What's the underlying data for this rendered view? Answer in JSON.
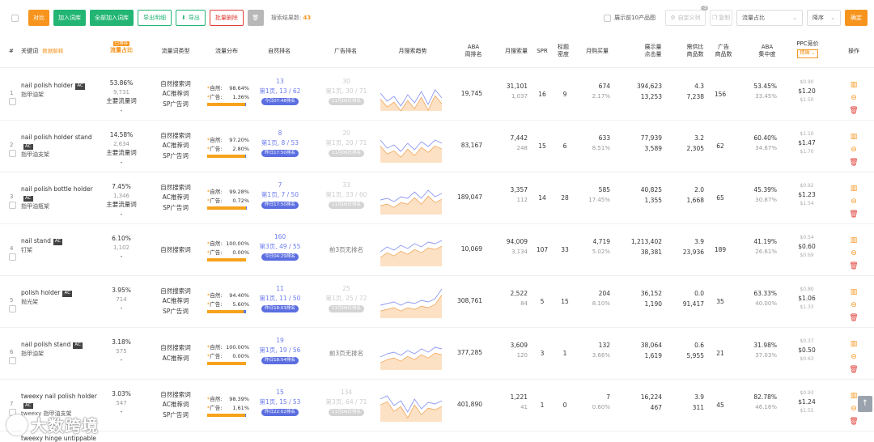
{
  "toolbar": {
    "buttons": [
      "对比",
      "加入词库",
      "全部加入词库",
      "导出明细",
      "导出",
      "批量删除"
    ],
    "result_label": "搜索结果数:",
    "result_count": "43",
    "top10_label": "展示前10产品图",
    "custom_cols": "自定义列",
    "custom_cols_badge": "-3",
    "copy_label": "复制",
    "sort_field": "流量占比",
    "sort_order": "降序",
    "confirm": "确定"
  },
  "header": {
    "num": "#",
    "keyword": "关键词",
    "keyword_sub": "数据解释",
    "flow_badge": "已排序",
    "flow": "流量占比",
    "flow_type": "流量词类型",
    "flow_dist": "流量分布",
    "natural_rank": "自然排名",
    "ad_rank": "广告排名",
    "trend": "月搜索趋势",
    "aba_rank_1": "ABA",
    "aba_rank_2": "周排名",
    "monthly_search": "月搜索量",
    "spr": "SPR",
    "title_density_1": "标题",
    "title_density_2": "密度",
    "monthly_buy": "月购买量",
    "impress_1": "展示量",
    "impress_2": "点击量",
    "supply_1": "需供比",
    "supply_2": "商品数",
    "ad_products_1": "广告",
    "ad_products_2": "商品数",
    "aba_conc_1": "ABA",
    "aba_conc_2": "集中度",
    "ppc": "PPC竞价",
    "ppc_select": "精确",
    "ops": "操作"
  },
  "rows": [
    {
      "idx": "1",
      "kw": "nail polish holder",
      "cn": "指甲油架",
      "flow": "53.86%",
      "cnt": "9,731",
      "main": "主要流量词",
      "dash": "-",
      "types": [
        "自然搜索词",
        "AC推荐词",
        "SP广告词"
      ],
      "nat_pct": "98.64%",
      "ad_pct": "1.36%",
      "rank": "13",
      "rank_page": "第1页, 13 / 62",
      "rank_time": "今日07:48排名",
      "ad_rank": "30",
      "ad_page": "第1页, 30 / 71",
      "ad_time": "11月06日排名",
      "aba": "19,745",
      "ms": "31,101",
      "ms2": "1,037",
      "spr": "16",
      "td": "9",
      "buy": "674",
      "buy_pct": "2.17%",
      "imp": "394,623",
      "clk": "13,253",
      "sup": "4.3",
      "prods": "7,238",
      "adprods": "156",
      "conc": "53.45%",
      "conc2": "33.45%",
      "ppc_low": "$0.90",
      "ppc": "$1.20",
      "ppc_high": "$1.50"
    },
    {
      "idx": "2",
      "kw": "nail polish holder stand",
      "cn": "指甲油支架",
      "flow": "14.58%",
      "cnt": "2,634",
      "main": "主要流量词",
      "dash": "-",
      "types": [
        "自然搜索词",
        "AC推荐词",
        "SP广告词"
      ],
      "nat_pct": "97.20%",
      "ad_pct": "2.80%",
      "rank": "8",
      "rank_page": "第1页, 8 / 53",
      "rank_time": "昨日17:50排名",
      "ad_rank": "20",
      "ad_page": "第1页, 20 / 71",
      "ad_time": "11月06日排名",
      "aba": "83,167",
      "ms": "7,442",
      "ms2": "248",
      "spr": "15",
      "td": "6",
      "buy": "633",
      "buy_pct": "8.51%",
      "imp": "77,939",
      "clk": "3,589",
      "sup": "3.2",
      "prods": "2,305",
      "adprods": "62",
      "conc": "60.40%",
      "conc2": "34.67%",
      "ppc_low": "$1.10",
      "ppc": "$1.47",
      "ppc_high": "$1.70"
    },
    {
      "idx": "3",
      "kw": "nail polish bottle holder",
      "cn": "指甲油瓶架",
      "flow": "7.45%",
      "cnt": "1,346",
      "main": "主要流量词",
      "dash": "-",
      "types": [
        "自然搜索词",
        "AC推荐词",
        "SP广告词"
      ],
      "nat_pct": "99.28%",
      "ad_pct": "0.72%",
      "rank": "7",
      "rank_page": "第1页, 7 / 50",
      "rank_time": "昨日17:50排名",
      "ad_rank": "33",
      "ad_page": "第1页, 33 / 60",
      "ad_time": "11月06日排名",
      "aba": "189,047",
      "ms": "3,357",
      "ms2": "112",
      "spr": "14",
      "td": "28",
      "buy": "585",
      "buy_pct": "17.45%",
      "imp": "40,825",
      "clk": "1,355",
      "sup": "2.0",
      "prods": "1,668",
      "adprods": "65",
      "conc": "45.39%",
      "conc2": "30.87%",
      "ppc_low": "$0.92",
      "ppc": "$1.23",
      "ppc_high": "$1.54"
    },
    {
      "idx": "4",
      "kw": "nail stand",
      "cn": "钉架",
      "flow": "6.10%",
      "cnt": "1,102",
      "main": "",
      "dash": "-",
      "types": [
        "自然搜索词"
      ],
      "nat_pct": "100.00%",
      "ad_pct": "0.00%",
      "rank": "160",
      "rank_page": "第3页, 49 / 55",
      "rank_time": "今日04:29排名",
      "ad_none": "前3页无排名",
      "aba": "10,069",
      "ms": "94,009",
      "ms2": "3,134",
      "spr": "107",
      "td": "33",
      "buy": "4,719",
      "buy_pct": "5.02%",
      "imp": "1,213,402",
      "clk": "38,381",
      "sup": "3.9",
      "prods": "23,936",
      "adprods": "189",
      "conc": "41.19%",
      "conc2": "26.61%",
      "ppc_low": "$0.54",
      "ppc": "$0.60",
      "ppc_high": "$0.69"
    },
    {
      "idx": "5",
      "kw": "polish holder",
      "cn": "抛光架",
      "flow": "3.95%",
      "cnt": "714",
      "main": "",
      "dash": "-",
      "types": [
        "自然搜索词",
        "AC推荐词",
        "SP广告词"
      ],
      "nat_pct": "94.40%",
      "ad_pct": "5.60%",
      "rank": "11",
      "rank_page": "第1页, 11 / 50",
      "rank_time": "昨日18:03排名",
      "ad_rank": "25",
      "ad_page": "第1页, 25 / 72",
      "ad_time": "11月06日排名",
      "aba": "308,761",
      "ms": "2,522",
      "ms2": "84",
      "spr": "5",
      "td": "15",
      "buy": "204",
      "buy_pct": "8.10%",
      "imp": "36,152",
      "clk": "1,190",
      "sup": "0.0",
      "prods": "91,417",
      "adprods": "35",
      "conc": "63.33%",
      "conc2": "40.00%",
      "ppc_low": "$0.80",
      "ppc": "$1.06",
      "ppc_high": "$1.33"
    },
    {
      "idx": "6",
      "kw": "nail polish stand",
      "cn": "指甲油架",
      "flow": "3.18%",
      "cnt": "575",
      "main": "",
      "dash": "-",
      "types": [
        "自然搜索词",
        "AC推荐词"
      ],
      "nat_pct": "100.00%",
      "ad_pct": "0.00%",
      "rank": "19",
      "rank_page": "第1页, 19 / 56",
      "rank_time": "昨日18:54排名",
      "ad_none": "前3页无排名",
      "aba": "377,285",
      "ms": "3,609",
      "ms2": "120",
      "spr": "3",
      "td": "1",
      "buy": "132",
      "buy_pct": "3.66%",
      "imp": "38,064",
      "clk": "1,619",
      "sup": "0.6",
      "prods": "5,955",
      "adprods": "21",
      "conc": "31.98%",
      "conc2": "37.03%",
      "ppc_low": "$0.37",
      "ppc": "$0.50",
      "ppc_high": "$0.63"
    },
    {
      "idx": "7",
      "kw": "tweexy nail polish holder",
      "cn": "tweexy 指甲油支架",
      "flow": "3.03%",
      "cnt": "547",
      "main": "",
      "dash": "-",
      "types": [
        "自然搜索词",
        "AC推荐词",
        "SP广告词"
      ],
      "nat_pct": "98.39%",
      "ad_pct": "1.61%",
      "rank": "15",
      "rank_page": "第1页, 15 / 53",
      "rank_time": "昨日22:02排名",
      "ad_rank": "134",
      "ad_page": "第3页, 64 / 71",
      "ad_time": "11月06日排名",
      "aba": "401,890",
      "ms": "1,221",
      "ms2": "41",
      "spr": "1",
      "td": "0",
      "buy": "7",
      "buy_pct": "0.60%",
      "imp": "16,224",
      "clk": "467",
      "sup": "3.9",
      "prods": "311",
      "adprods": "45",
      "conc": "82.78%",
      "conc2": "46.16%",
      "ppc_low": "$0.93",
      "ppc": "$1.24",
      "ppc_high": "$1.55"
    }
  ],
  "next_row_kw": "tweexy hinge untippable",
  "labels": {
    "nat": "自然:",
    "ad": "广告:"
  },
  "watermark": "大数跨境",
  "colors": {
    "accent": "#f7941d",
    "green": "#22b573",
    "rank_blue": "#6b7cf0",
    "red": "#e0403a"
  }
}
